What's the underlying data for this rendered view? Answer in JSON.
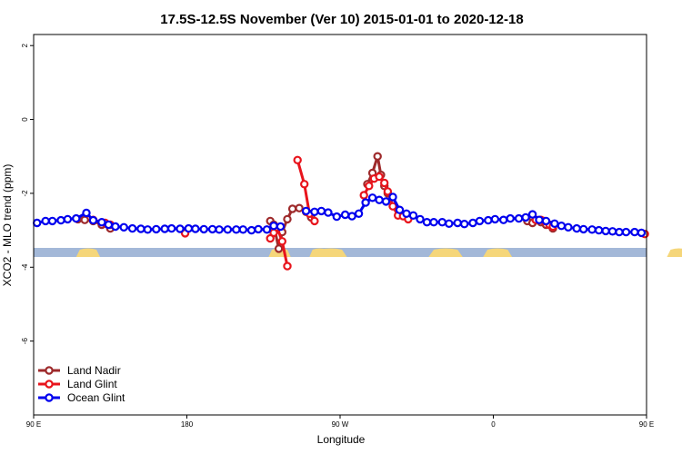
{
  "chart_data": {
    "type": "line",
    "title": "17.5S-12.5S November (Ver 10)   2015-01-01 to 2020-12-18",
    "xlabel": "Longitude",
    "ylabel": "XCO2 - MLO trend (ppm)",
    "xlim": [
      -180,
      180
    ],
    "ylim": [
      -8,
      2.3
    ],
    "x_ticks": [
      {
        "value": -180,
        "label": "90 E"
      },
      {
        "value": -90,
        "label": "180"
      },
      {
        "value": 0,
        "label": "90 W"
      },
      {
        "value": 90,
        "label": "0"
      },
      {
        "value": 180,
        "label": "90 E"
      },
      {
        "value": 270,
        "label": "180"
      }
    ],
    "y_ticks": [
      {
        "value": 2,
        "label": "2"
      },
      {
        "value": 0,
        "label": "0"
      },
      {
        "value": -2,
        "label": "-2"
      },
      {
        "value": -4,
        "label": "-4"
      },
      {
        "value": -6,
        "label": "-6"
      }
    ],
    "legend_position": "bottom-left",
    "land_mask": {
      "y": -3.6,
      "ocean_color": "#a3b8d8",
      "land_color": "#f5d67a",
      "land_segments": [
        [
          -155,
          -141
        ],
        [
          -42,
          -29
        ],
        [
          -18,
          -6
        ],
        [
          -15,
          4
        ],
        [
          52,
          72
        ],
        [
          84,
          101
        ],
        [
          192,
          206
        ]
      ]
    },
    "series": [
      {
        "name": "Land Nadir",
        "color": "#9e2a2b",
        "segments": [
          [
            [
              -154,
              -2.7
            ],
            [
              -150,
              -2.72
            ],
            [
              -145,
              -2.75
            ],
            [
              -140,
              -2.85
            ],
            [
              -135,
              -2.95
            ]
          ],
          [
            [
              -41,
              -2.75
            ],
            [
              -39,
              -2.85
            ],
            [
              -36,
              -3.5
            ],
            [
              -34,
              -3.05
            ],
            [
              -31,
              -2.7
            ],
            [
              -28,
              -2.42
            ],
            [
              -24,
              -2.4
            ],
            [
              -20,
              -2.5
            ],
            [
              -17,
              -2.65
            ]
          ],
          [
            [
              16,
              -1.75
            ],
            [
              19,
              -1.45
            ],
            [
              22,
              -1.0
            ],
            [
              24,
              -1.5
            ],
            [
              26,
              -1.8
            ],
            [
              28,
              -2.0
            ]
          ],
          [
            [
              110,
              -2.75
            ],
            [
              113,
              -2.8
            ],
            [
              115,
              -2.72
            ]
          ],
          [
            [
              118,
              -2.78
            ],
            [
              121,
              -2.85
            ],
            [
              125,
              -2.95
            ]
          ]
        ]
      },
      {
        "name": "Land Glint",
        "color": "#e8141c",
        "segments": [
          [
            [
              -145,
              -2.72
            ],
            [
              -138,
              -2.8
            ],
            [
              -135,
              -2.85
            ]
          ],
          [
            [
              -91,
              -3.08
            ]
          ],
          [
            [
              -41,
              -3.22
            ],
            [
              -39,
              -3.07
            ],
            [
              -37,
              -2.92
            ],
            [
              -34,
              -3.3
            ],
            [
              -31,
              -3.97
            ]
          ],
          [
            [
              -25,
              -1.1
            ],
            [
              -21,
              -1.75
            ],
            [
              -18,
              -2.55
            ],
            [
              -15,
              -2.75
            ]
          ],
          [
            [
              14,
              -2.05
            ],
            [
              17,
              -1.8
            ],
            [
              20,
              -1.6
            ],
            [
              23,
              -1.55
            ],
            [
              26,
              -1.72
            ],
            [
              28,
              -1.95
            ],
            [
              31,
              -2.35
            ],
            [
              34,
              -2.6
            ],
            [
              37,
              -2.62
            ],
            [
              40,
              -2.7
            ]
          ],
          [
            [
              115,
              -2.72
            ],
            [
              118,
              -2.72
            ],
            [
              120,
              -2.75
            ],
            [
              123,
              -2.85
            ],
            [
              125,
              -2.9
            ]
          ],
          [
            [
              179,
              -3.1
            ]
          ]
        ]
      },
      {
        "name": "Ocean Glint",
        "color": "#0000ee",
        "segments": [
          [
            [
              -178,
              -2.8
            ],
            [
              -173,
              -2.75
            ],
            [
              -169,
              -2.75
            ],
            [
              -164,
              -2.73
            ],
            [
              -160,
              -2.7
            ],
            [
              -155,
              -2.68
            ],
            [
              -149,
              -2.53
            ],
            [
              -145,
              -2.73
            ],
            [
              -140,
              -2.78
            ],
            [
              -136,
              -2.85
            ],
            [
              -132,
              -2.9
            ],
            [
              -127,
              -2.92
            ],
            [
              -122,
              -2.95
            ],
            [
              -117,
              -2.96
            ],
            [
              -113,
              -2.98
            ],
            [
              -108,
              -2.97
            ],
            [
              -103,
              -2.96
            ],
            [
              -99,
              -2.95
            ],
            [
              -94,
              -2.96
            ],
            [
              -89,
              -2.95
            ],
            [
              -85,
              -2.96
            ],
            [
              -80,
              -2.97
            ],
            [
              -75,
              -2.97
            ],
            [
              -71,
              -2.98
            ],
            [
              -66,
              -2.98
            ],
            [
              -61,
              -2.98
            ],
            [
              -57,
              -2.98
            ],
            [
              -52,
              -3.0
            ],
            [
              -48,
              -2.97
            ],
            [
              -43,
              -2.98
            ],
            [
              -39,
              -2.88
            ],
            [
              -35,
              -2.9
            ]
          ],
          [
            [
              -20,
              -2.48
            ],
            [
              -15,
              -2.5
            ],
            [
              -11,
              -2.48
            ],
            [
              -7,
              -2.52
            ],
            [
              -2,
              -2.63
            ],
            [
              3,
              -2.58
            ],
            [
              7,
              -2.62
            ],
            [
              11,
              -2.55
            ],
            [
              15,
              -2.25
            ],
            [
              19,
              -2.12
            ],
            [
              23,
              -2.18
            ],
            [
              27,
              -2.22
            ],
            [
              31,
              -2.1
            ],
            [
              35,
              -2.45
            ],
            [
              39,
              -2.55
            ],
            [
              43,
              -2.6
            ],
            [
              47,
              -2.7
            ],
            [
              51,
              -2.78
            ],
            [
              55,
              -2.78
            ],
            [
              60,
              -2.78
            ],
            [
              64,
              -2.82
            ],
            [
              69,
              -2.8
            ],
            [
              73,
              -2.83
            ],
            [
              78,
              -2.8
            ],
            [
              82,
              -2.75
            ],
            [
              87,
              -2.73
            ],
            [
              91,
              -2.7
            ],
            [
              96,
              -2.72
            ],
            [
              100,
              -2.68
            ],
            [
              105,
              -2.68
            ],
            [
              109,
              -2.65
            ],
            [
              113,
              -2.57
            ],
            [
              117,
              -2.72
            ],
            [
              121,
              -2.75
            ],
            [
              126,
              -2.82
            ],
            [
              130,
              -2.88
            ],
            [
              134,
              -2.92
            ],
            [
              139,
              -2.95
            ],
            [
              143,
              -2.97
            ],
            [
              148,
              -2.98
            ],
            [
              152,
              -3.0
            ],
            [
              156,
              -3.02
            ],
            [
              160,
              -3.03
            ],
            [
              164,
              -3.05
            ],
            [
              168,
              -3.05
            ],
            [
              173,
              -3.05
            ],
            [
              177,
              -3.07
            ]
          ]
        ]
      }
    ]
  }
}
